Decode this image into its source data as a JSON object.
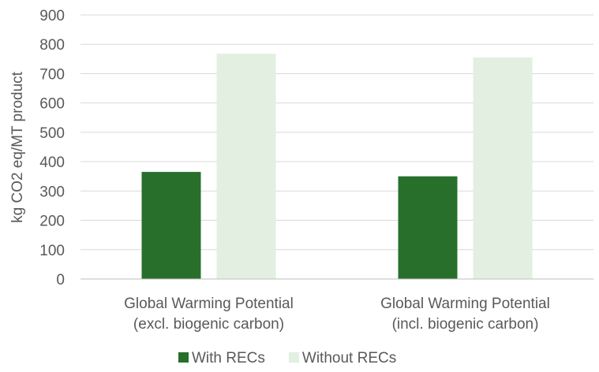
{
  "chart_data": {
    "type": "bar",
    "categories": [
      [
        "Global Warming Potential",
        "(excl. biogenic carbon)"
      ],
      [
        "Global Warming Potential",
        "(incl. biogenic carbon)"
      ]
    ],
    "series": [
      {
        "name": "With RECs",
        "color": "#276f2b",
        "values": [
          365,
          350
        ]
      },
      {
        "name": "Without RECs",
        "color": "#e2efe1",
        "values": [
          768,
          755
        ]
      }
    ],
    "ylabel": "kg CO2 eq/MT product",
    "xlabel": "",
    "ylim": [
      0,
      900
    ],
    "yticks": [
      0,
      100,
      200,
      300,
      400,
      500,
      600,
      700,
      800,
      900
    ],
    "grid": true,
    "legend": "bottom"
  }
}
